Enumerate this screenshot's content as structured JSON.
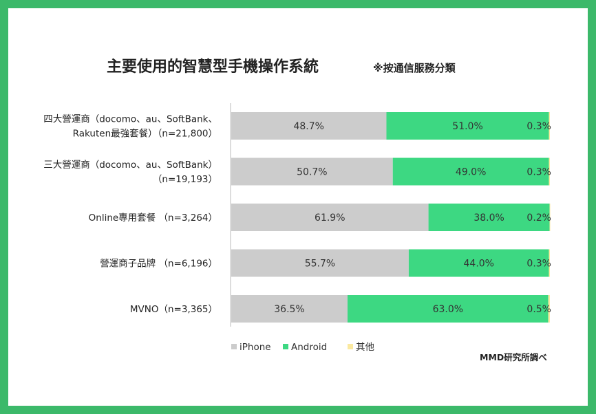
{
  "chart_data": {
    "type": "bar",
    "orientation": "horizontal",
    "stacked": true,
    "title": "主要使用的智慧型手機操作系統",
    "subtitle": "※按通信服務分類",
    "categories": [
      [
        "四大營運商（docomo、au、SoftBank、",
        "Rakuten最強套餐）（n=21,800）"
      ],
      [
        "三大營運商（docomo、au、SoftBank）",
        "（n=19,193）"
      ],
      [
        "Online專用套餐 （n=3,264）"
      ],
      [
        "營運商子品牌 （n=6,196）"
      ],
      [
        "MVNO（n=3,365）"
      ]
    ],
    "series": [
      {
        "name": "iPhone",
        "color": "#cccccc",
        "values": [
          48.7,
          50.7,
          61.9,
          55.7,
          36.5
        ],
        "labels": [
          "48.7%",
          "50.7%",
          "61.9%",
          "55.7%",
          "36.5%"
        ]
      },
      {
        "name": "Android",
        "color": "#3dd882",
        "values": [
          51.0,
          49.0,
          38.0,
          44.0,
          63.0
        ],
        "labels": [
          "51.0%",
          "49.0%",
          "38.0%",
          "44.0%",
          "63.0%"
        ]
      },
      {
        "name": "其他",
        "color": "#fbe9a0",
        "values": [
          0.3,
          0.3,
          0.2,
          0.3,
          0.5
        ],
        "labels": [
          "0.3%",
          "0.3%",
          "0.2%",
          "0.3%",
          "0.5%"
        ]
      }
    ],
    "xlim": [
      0,
      100
    ],
    "legend_position": "bottom-left",
    "grid": false,
    "source": "MMD研究所調べ"
  },
  "colors": {
    "frame": "#3cb96a",
    "axis": "#bbbbbb",
    "text": "#222222"
  }
}
